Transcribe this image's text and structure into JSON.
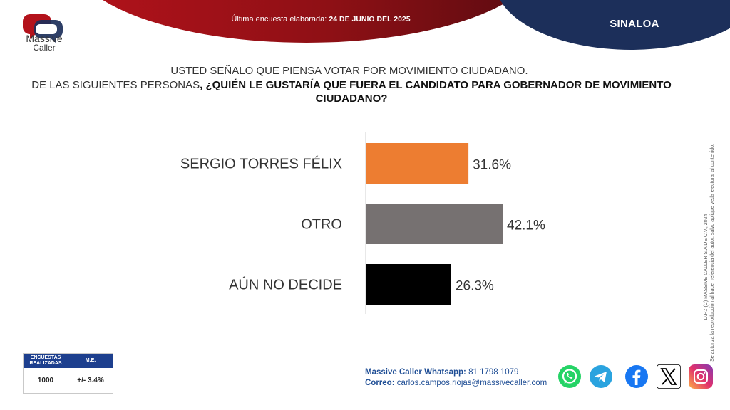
{
  "header": {
    "survey_date_prefix": "Última encuesta elaborada:",
    "survey_date": "24 DE JUNIO DEL 2025",
    "region": "SINALOA"
  },
  "logo": {
    "line1": "Massive",
    "line2": "Caller"
  },
  "question": {
    "line1": "USTED SEÑALO QUE PIENSA VOTAR POR MOVIMIENTO CIUDADANO.",
    "line2_prefix": "DE LAS SIGUIENTES PERSONAS",
    "line2_bold": ", ¿QUIÉN LE GUSTARÍA QUE FUERA EL CANDIDATO PARA GOBERNADOR DE MOVIMIENTO CIUDADANO?"
  },
  "chart_data": {
    "type": "bar",
    "orientation": "horizontal",
    "categories": [
      "SERGIO TORRES FÉLIX",
      "OTRO",
      "AÚN NO DECIDE"
    ],
    "values": [
      31.6,
      42.1,
      26.3
    ],
    "value_labels": [
      "31.6%",
      "42.1%",
      "26.3%"
    ],
    "colors": [
      "#ed7d31",
      "#767171",
      "#000000"
    ],
    "xlim": [
      0,
      100
    ]
  },
  "copyright": {
    "line1": "D.R.: (C) MASSIVE CALLER S.A DE C.V., 2024",
    "line2": "Se autoriza la reproducción al hacer referencia del autor, salvo aplique veda electoral al contenido."
  },
  "stats": {
    "col1_header": "ENCUESTAS REALIZADAS",
    "col2_header": "M.E.",
    "col1_value": "1000",
    "col2_value": "+/- 3.4%"
  },
  "contact": {
    "whatsapp_label": "Massive Caller Whatsapp:",
    "whatsapp_value": "81 1798 1079",
    "email_label": "Correo:",
    "email_value": "carlos.campos.riojas@massivecaller.com"
  },
  "social": {
    "whatsapp": {
      "icon": "whatsapp-icon",
      "color": "#25d366"
    },
    "telegram": {
      "icon": "telegram-icon",
      "color": "#2aa3df"
    },
    "facebook": {
      "icon": "facebook-icon",
      "color": "#1877f2"
    },
    "x": {
      "icon": "x-icon",
      "color": "#000000"
    },
    "instagram": {
      "icon": "instagram-icon",
      "color": "#c13584"
    }
  }
}
